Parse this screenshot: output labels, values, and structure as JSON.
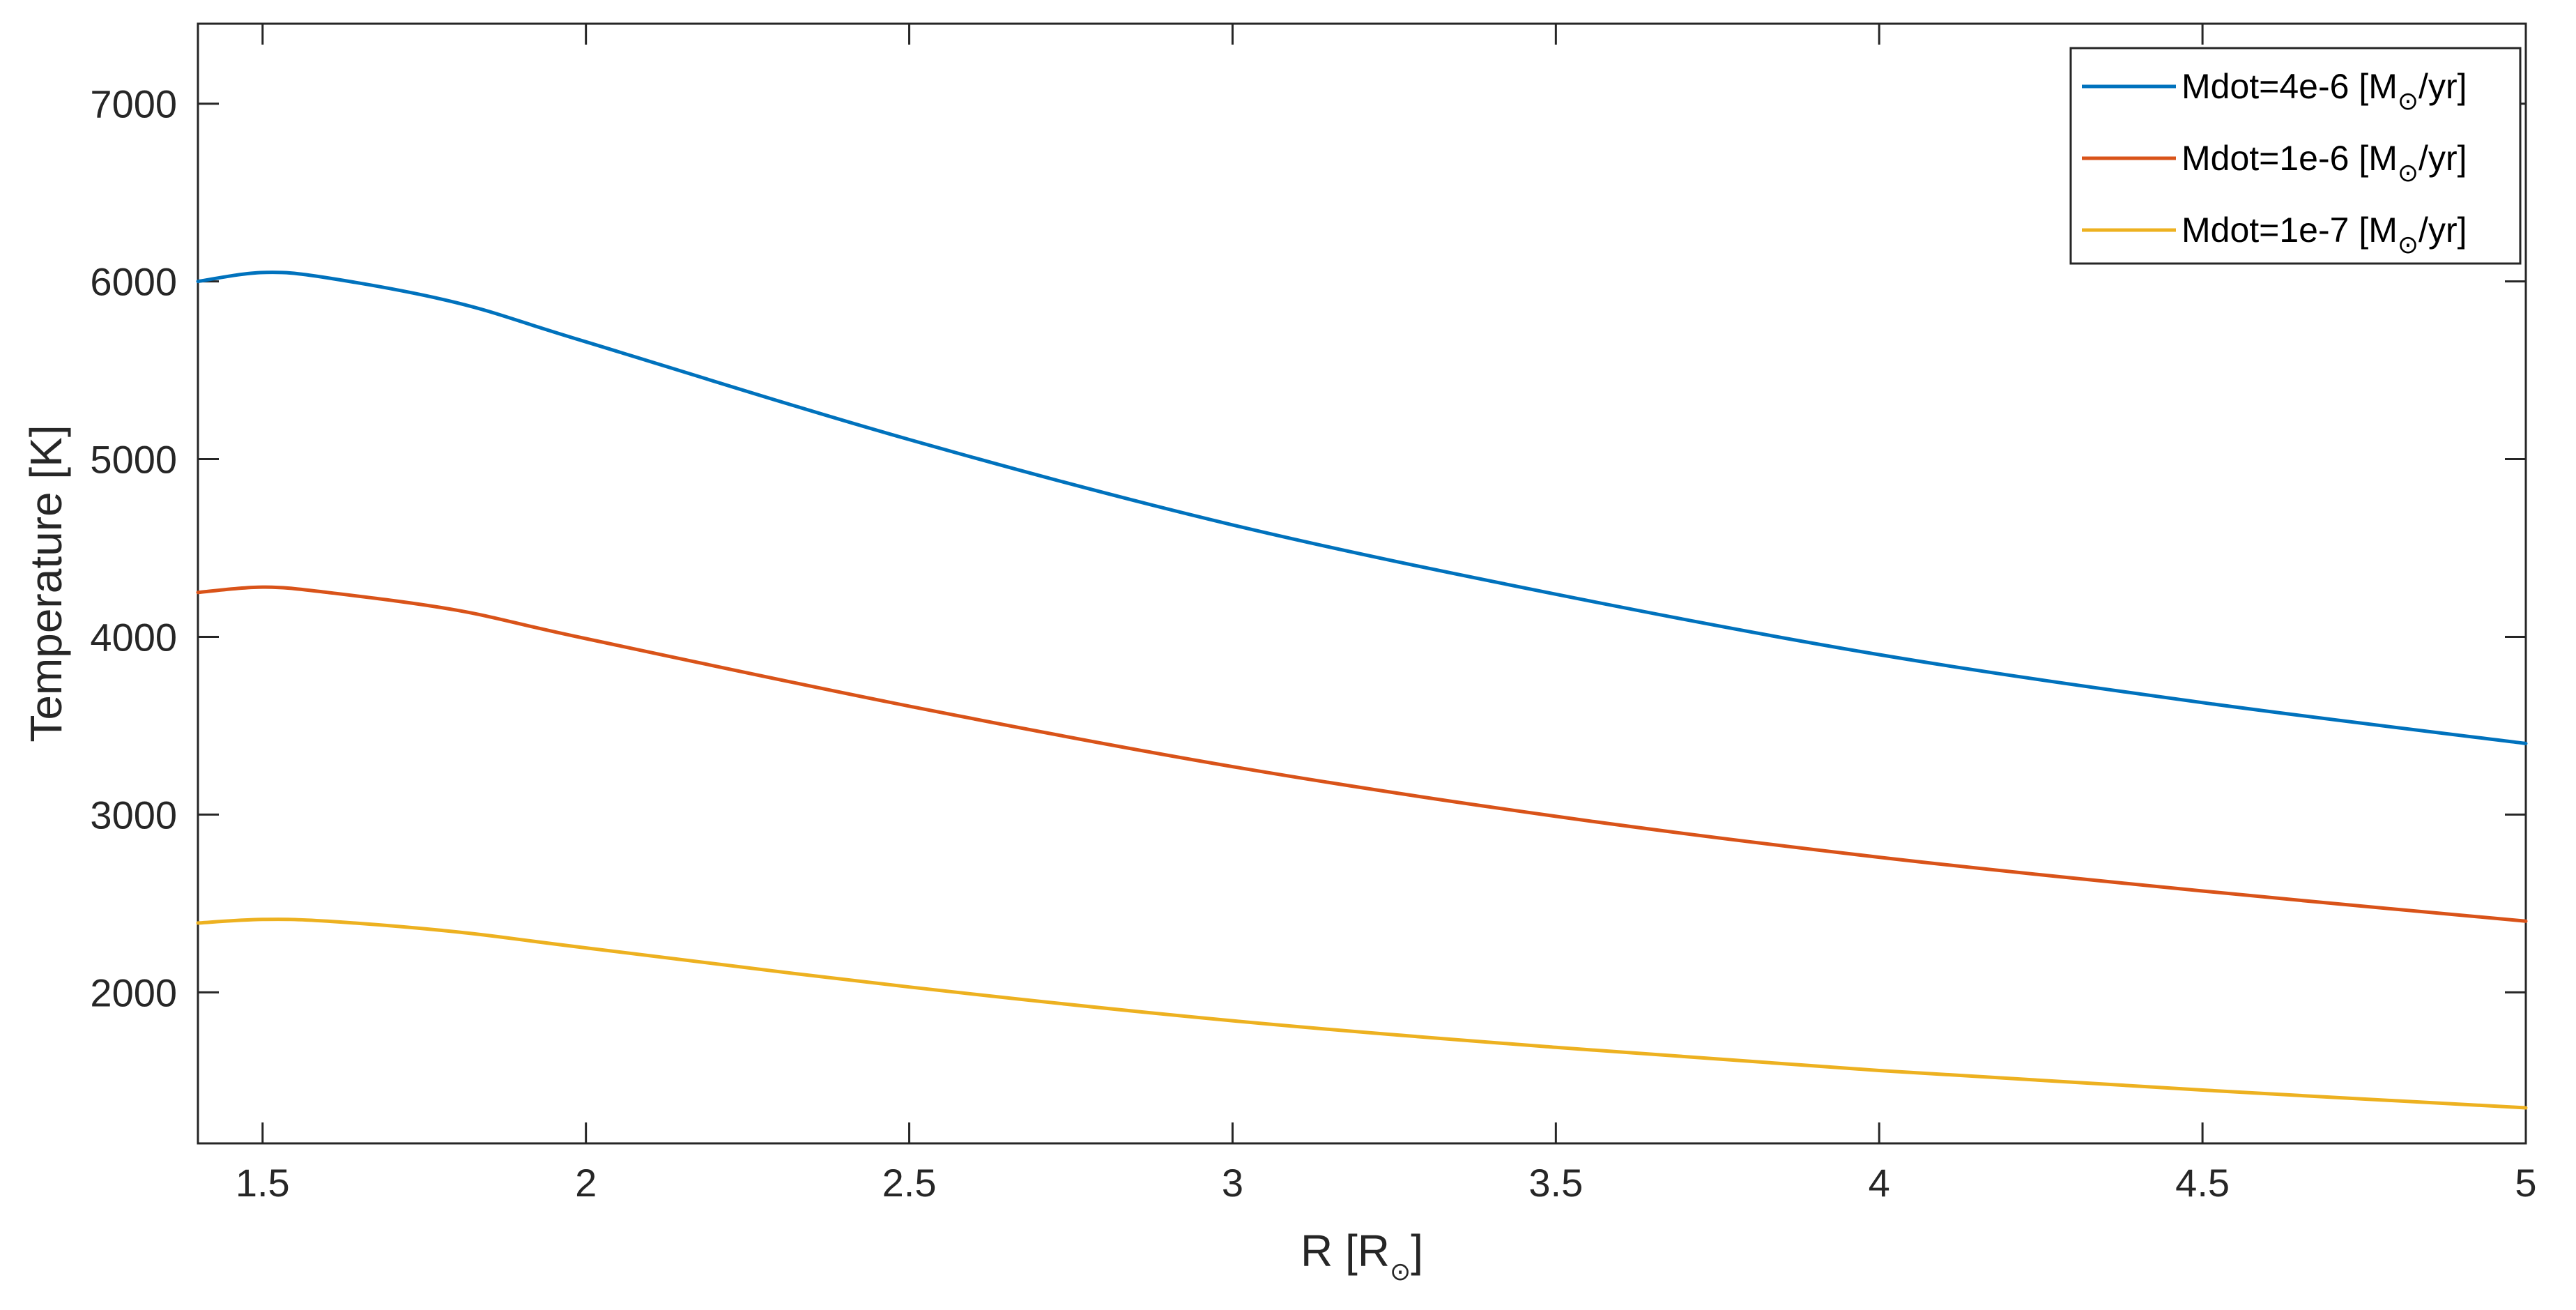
{
  "chart_data": {
    "type": "line",
    "xlabel": {
      "main": "R [R",
      "sub": "⊙",
      "close": "]"
    },
    "ylabel": "Temperature [K]",
    "xlim": [
      1.4,
      5.0
    ],
    "ylim": [
      1150,
      7450
    ],
    "xticks": [
      1.5,
      2,
      2.5,
      3,
      3.5,
      4,
      4.5,
      5
    ],
    "xtick_labels": [
      "1.5",
      "2",
      "2.5",
      "3",
      "3.5",
      "4",
      "4.5",
      "5"
    ],
    "yticks": [
      2000,
      3000,
      4000,
      5000,
      6000,
      7000
    ],
    "ytick_labels": [
      "2000",
      "3000",
      "4000",
      "5000",
      "6000",
      "7000"
    ],
    "grid": false,
    "legend_position": "top-right",
    "x": [
      1.4,
      1.5,
      1.6,
      1.8,
      2.0,
      2.5,
      3.0,
      3.5,
      4.0,
      4.5,
      5.0
    ],
    "series": [
      {
        "name": "Mdot=4e-6 [M⊙/yr]",
        "legend": {
          "main": "Mdot=4e-6 [M",
          "sub": "⊙",
          "close": "/yr]"
        },
        "color": "#0072BD",
        "values": [
          6000,
          6050,
          6020,
          5880,
          5660,
          5110,
          4630,
          4240,
          3900,
          3630,
          3400
        ]
      },
      {
        "name": "Mdot=1e-6 [M⊙/yr]",
        "legend": {
          "main": "Mdot=1e-6 [M",
          "sub": "⊙",
          "close": "/yr]"
        },
        "color": "#D95319",
        "values": [
          4250,
          4280,
          4250,
          4150,
          3990,
          3610,
          3270,
          2990,
          2760,
          2570,
          2400
        ]
      },
      {
        "name": "Mdot=1e-7 [M⊙/yr]",
        "legend": {
          "main": "Mdot=1e-7 [M",
          "sub": "⊙",
          "close": "/yr]"
        },
        "color": "#EDB120",
        "values": [
          2390,
          2410,
          2400,
          2340,
          2250,
          2030,
          1840,
          1690,
          1560,
          1450,
          1350
        ]
      }
    ]
  }
}
